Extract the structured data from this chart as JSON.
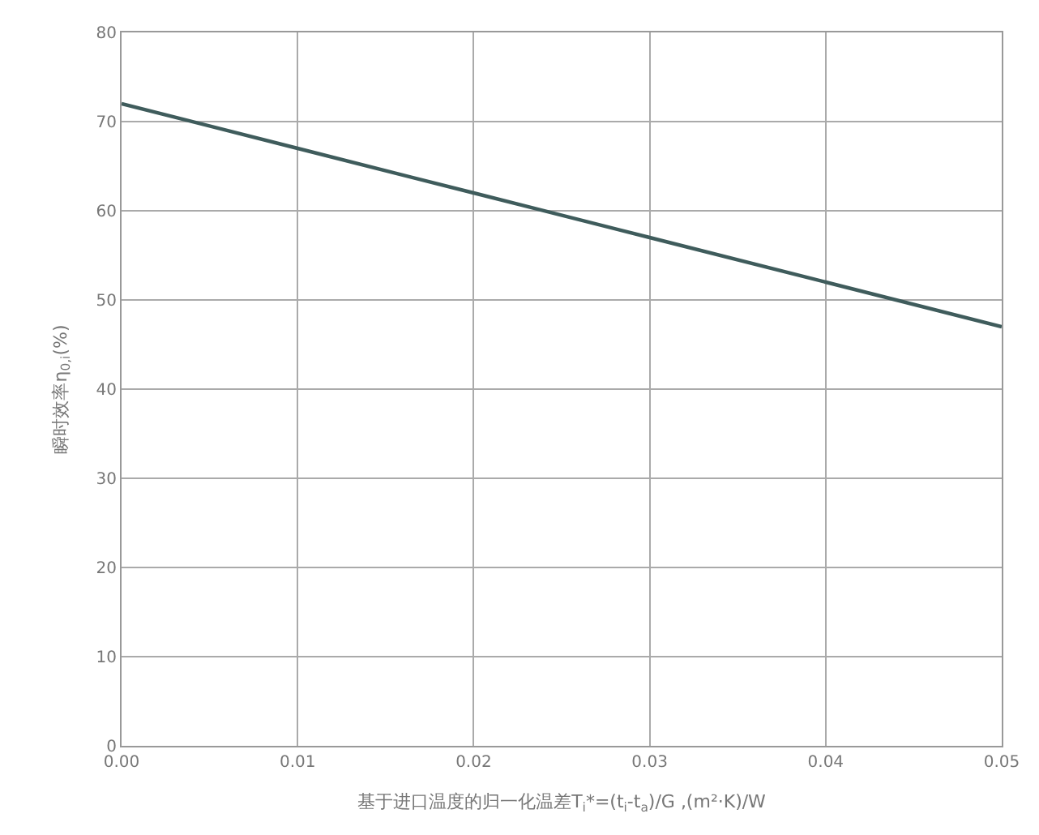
{
  "chart_data": {
    "type": "line",
    "xlabel": "基于进口温度的归一化温差T$_{i}$*=(t$_{i}$-t$_{a}$)/G ,(m²·K)/W",
    "ylabel": "瞬时效率η$_{0,i}$(%)",
    "x": [
      0,
      0.01,
      0.02,
      0.03,
      0.04,
      0.05
    ],
    "series": [
      {
        "color": "#3f5c5c",
        "values": [
          72,
          67,
          62,
          57,
          52,
          47
        ]
      }
    ],
    "xlim": [
      0,
      0.05
    ],
    "xticks": [
      {
        "value": 0,
        "label": "0.00"
      },
      {
        "value": 0.01,
        "label": "0.01"
      },
      {
        "value": 0.02,
        "label": "0.02"
      },
      {
        "value": 0.03,
        "label": "0.03"
      },
      {
        "value": 0.04,
        "label": "0.04"
      },
      {
        "value": 0.05,
        "label": "0.05"
      }
    ],
    "ylim": [
      0,
      80
    ],
    "yticks": [
      0,
      10,
      20,
      30,
      40,
      50,
      60,
      70,
      80
    ],
    "grid": true,
    "marker": "none",
    "line_style": "solid"
  }
}
